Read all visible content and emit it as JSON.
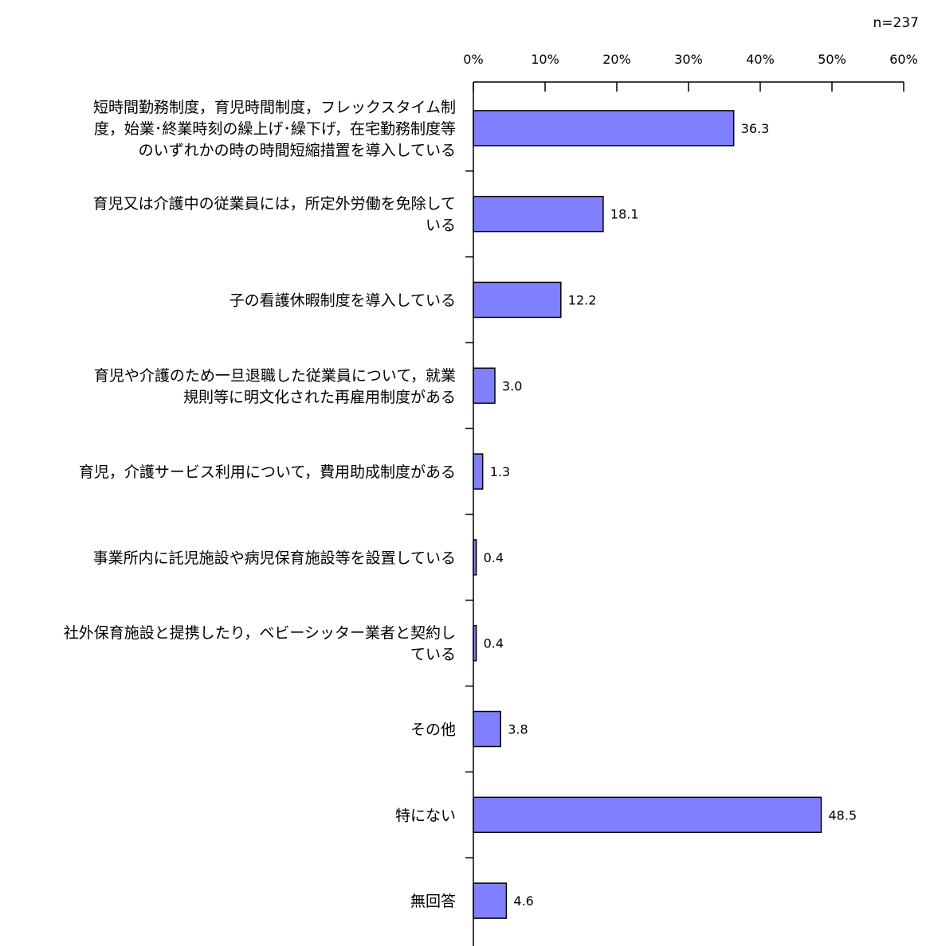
{
  "sample_note": "n=237",
  "colors": {
    "bar_fill": "#8080ff",
    "bar_stroke": "#000000",
    "axis": "#000000",
    "text": "#000000",
    "background": "#ffffff"
  },
  "chart_data": {
    "type": "bar",
    "orientation": "horizontal",
    "x_axis_position": "top",
    "xlim": [
      0,
      60
    ],
    "x_ticks": [
      0,
      10,
      20,
      30,
      40,
      50,
      60
    ],
    "x_tick_labels": [
      "0%",
      "10%",
      "20%",
      "30%",
      "40%",
      "50%",
      "60%"
    ],
    "grid": false,
    "legend": false,
    "categories": [
      [
        "短時間勤務制度，育児時間制度，フレックスタイム制",
        "度，始業･終業時刻の繰上げ･繰下げ，在宅勤務制度等",
        "のいずれかの時の時間短縮措置を導入している"
      ],
      [
        "育児又は介護中の従業員には，所定外労働を免除して",
        "いる"
      ],
      [
        "子の看護休暇制度を導入している"
      ],
      [
        "育児や介護のため一旦退職した従業員について，就業",
        "規則等に明文化された再雇用制度がある"
      ],
      [
        "育児，介護サービス利用について，費用助成制度がある"
      ],
      [
        "事業所内に託児施設や病児保育施設等を設置している"
      ],
      [
        "社外保育施設と提携したり，ベビーシッター業者と契約し",
        "ている"
      ],
      [
        "その他"
      ],
      [
        "特にない"
      ],
      [
        "無回答"
      ]
    ],
    "values": [
      36.3,
      18.1,
      12.2,
      3.0,
      1.3,
      0.4,
      0.4,
      3.8,
      48.5,
      4.6
    ],
    "value_labels": [
      "36.3",
      "18.1",
      "12.2",
      "3.0",
      "1.3",
      "0.4",
      "0.4",
      "3.8",
      "48.5",
      "4.6"
    ]
  }
}
